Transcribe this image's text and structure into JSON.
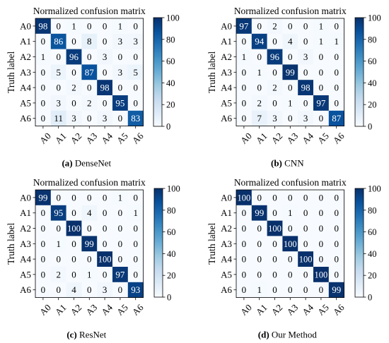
{
  "figure": {
    "colorbar_ticks": [
      0,
      20,
      40,
      60,
      80,
      100
    ],
    "colormap": [
      "#f7fbff",
      "#deebf7",
      "#c6dbef",
      "#9ecae1",
      "#6baed6",
      "#4292c6",
      "#2171b5",
      "#08519c",
      "#08306b"
    ]
  },
  "chart_data": [
    {
      "type": "heatmap",
      "title": "Normalized confusion matrix",
      "ylabel": "Truth label",
      "xlabel": "",
      "caption_label": "(a)",
      "caption_text": " DenseNet",
      "x_categories": [
        "A0",
        "A1",
        "A2",
        "A3",
        "A4",
        "A5",
        "A6"
      ],
      "y_categories": [
        "A0",
        "A1",
        "A2",
        "A3",
        "A4",
        "A5",
        "A6"
      ],
      "vmin": 0,
      "vmax": 100,
      "values": [
        [
          98,
          0,
          1,
          0,
          0,
          1,
          0
        ],
        [
          0,
          86,
          0,
          8,
          0,
          3,
          3
        ],
        [
          1,
          0,
          96,
          0,
          3,
          0,
          0
        ],
        [
          0,
          5,
          0,
          87,
          0,
          3,
          5
        ],
        [
          0,
          0,
          2,
          0,
          98,
          0,
          0
        ],
        [
          0,
          3,
          0,
          2,
          0,
          95,
          0
        ],
        [
          0,
          11,
          3,
          0,
          3,
          0,
          83
        ]
      ]
    },
    {
      "type": "heatmap",
      "title": "Normalized confusion matrix",
      "ylabel": "Truth label",
      "xlabel": "",
      "caption_label": "(b)",
      "caption_text": " CNN",
      "x_categories": [
        "A0",
        "A1",
        "A2",
        "A3",
        "A4",
        "A5",
        "A6"
      ],
      "y_categories": [
        "A0",
        "A1",
        "A2",
        "A3",
        "A4",
        "A5",
        "A6"
      ],
      "vmin": 0,
      "vmax": 100,
      "values": [
        [
          97,
          0,
          2,
          0,
          0,
          1,
          0
        ],
        [
          0,
          94,
          0,
          4,
          0,
          1,
          1
        ],
        [
          1,
          0,
          96,
          0,
          3,
          0,
          0
        ],
        [
          0,
          1,
          0,
          99,
          0,
          0,
          0
        ],
        [
          0,
          0,
          2,
          0,
          98,
          0,
          0
        ],
        [
          0,
          2,
          0,
          1,
          0,
          97,
          0
        ],
        [
          0,
          7,
          3,
          0,
          3,
          0,
          87
        ]
      ]
    },
    {
      "type": "heatmap",
      "title": "Normalized confusion matrix",
      "ylabel": "Truth label",
      "xlabel": "",
      "caption_label": "(c)",
      "caption_text": " ResNet",
      "x_categories": [
        "A0",
        "A1",
        "A2",
        "A3",
        "A4",
        "A5",
        "A6"
      ],
      "y_categories": [
        "A0",
        "A1",
        "A2",
        "A3",
        "A4",
        "A5",
        "A6"
      ],
      "vmin": 0,
      "vmax": 100,
      "values": [
        [
          99,
          0,
          0,
          0,
          0,
          1,
          0
        ],
        [
          0,
          95,
          0,
          4,
          0,
          0,
          1
        ],
        [
          0,
          0,
          100,
          0,
          0,
          0,
          0
        ],
        [
          0,
          1,
          0,
          99,
          0,
          0,
          0
        ],
        [
          0,
          0,
          0,
          0,
          100,
          0,
          0
        ],
        [
          0,
          2,
          0,
          1,
          0,
          97,
          0
        ],
        [
          0,
          0,
          4,
          0,
          3,
          0,
          93
        ]
      ]
    },
    {
      "type": "heatmap",
      "title": "Normalized confusion matrix",
      "ylabel": "Truth label",
      "xlabel": "",
      "caption_label": "(d)",
      "caption_text": " Our Method",
      "x_categories": [
        "A0",
        "A1",
        "A2",
        "A3",
        "A4",
        "A5",
        "A6"
      ],
      "y_categories": [
        "A0",
        "A1",
        "A2",
        "A3",
        "A4",
        "A5",
        "A6"
      ],
      "vmin": 0,
      "vmax": 100,
      "values": [
        [
          100,
          0,
          0,
          0,
          0,
          0,
          0
        ],
        [
          0,
          99,
          0,
          1,
          0,
          0,
          0
        ],
        [
          0,
          0,
          100,
          0,
          0,
          0,
          0
        ],
        [
          0,
          0,
          0,
          100,
          0,
          0,
          0
        ],
        [
          0,
          0,
          0,
          0,
          100,
          0,
          0
        ],
        [
          0,
          0,
          0,
          0,
          0,
          100,
          0
        ],
        [
          0,
          1,
          0,
          0,
          0,
          0,
          99
        ]
      ]
    }
  ]
}
